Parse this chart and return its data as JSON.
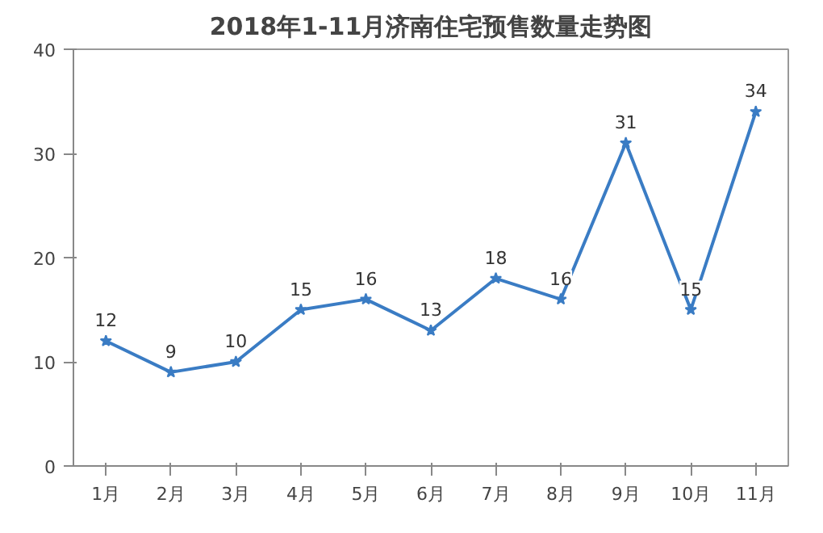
{
  "chart_data": {
    "type": "line",
    "title": "2018年1-11月济南住宅预售数量走势图",
    "categories": [
      "1月",
      "2月",
      "3月",
      "4月",
      "5月",
      "6月",
      "7月",
      "8月",
      "9月",
      "10月",
      "11月"
    ],
    "series": [
      {
        "color": "#3a7cc4",
        "values": [
          12,
          9,
          10,
          15,
          16,
          13,
          18,
          16,
          31,
          15,
          34
        ]
      }
    ],
    "ylim": [
      0,
      40
    ],
    "yticks": [
      0,
      10,
      20,
      30,
      40
    ],
    "grid": false,
    "marker": "star",
    "line_style": "solid",
    "data_labels": true
  }
}
